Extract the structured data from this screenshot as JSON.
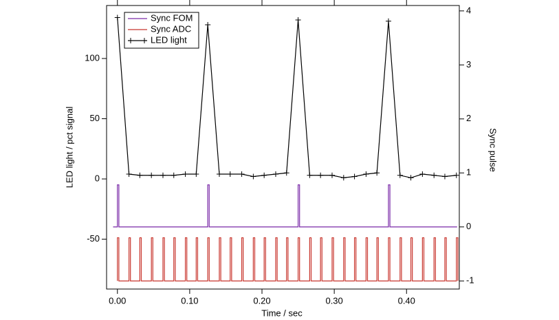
{
  "chart_data": {
    "type": "line",
    "x_label": "Time / sec",
    "y_label": "LED light / pct signal",
    "y2_label": "Sync pulse",
    "xlim": [
      -0.015,
      0.473
    ],
    "ylim": [
      -91.4,
      144
    ],
    "y2lim": [
      -1.15,
      4.1
    ],
    "xticks": [
      {
        "value": 0,
        "label": "0.00"
      },
      {
        "value": 0.1,
        "label": "0.10"
      },
      {
        "value": 0.2,
        "label": "0.20"
      },
      {
        "value": 0.3,
        "label": "0.30"
      },
      {
        "value": 0.4,
        "label": "0.40"
      }
    ],
    "yticks": [
      -50,
      0,
      50,
      100
    ],
    "y2ticks": [
      -1,
      0,
      1,
      2,
      3,
      4
    ],
    "legend": "upper left",
    "series": [
      {
        "name": "Sync FOM",
        "color": "#7a2aa8",
        "axis": "y2",
        "x": [
          -0.006,
          0,
          0,
          0.002,
          0.002,
          0.125,
          0.125,
          0.127,
          0.127,
          0.25,
          0.25,
          0.252,
          0.252,
          0.375,
          0.375,
          0.377,
          0.377,
          0.47
        ],
        "values": [
          0,
          0,
          0.78,
          0.78,
          0,
          0,
          0.78,
          0.78,
          0,
          0,
          0.78,
          0.78,
          0,
          0,
          0.78,
          0.78,
          0,
          0
        ]
      },
      {
        "name": "Sync ADC",
        "color": "#c8342c",
        "axis": "y2",
        "x": [
          0,
          0,
          0.002,
          0.002,
          0.016,
          0.016,
          0.018,
          0.018,
          0.031,
          0.031,
          0.033,
          0.033,
          0.047,
          0.047,
          0.049,
          0.049,
          0.063,
          0.063,
          0.065,
          0.065,
          0.078,
          0.078,
          0.08,
          0.08,
          0.094,
          0.094,
          0.096,
          0.096,
          0.109,
          0.109,
          0.111,
          0.111,
          0.125,
          0.125,
          0.127,
          0.127,
          0.141,
          0.141,
          0.143,
          0.143,
          0.156,
          0.156,
          0.158,
          0.158,
          0.172,
          0.172,
          0.174,
          0.174,
          0.188,
          0.188,
          0.19,
          0.19,
          0.203,
          0.203,
          0.205,
          0.205,
          0.219,
          0.219,
          0.221,
          0.221,
          0.234,
          0.234,
          0.236,
          0.236,
          0.25,
          0.25,
          0.252,
          0.252,
          0.266,
          0.266,
          0.268,
          0.268,
          0.281,
          0.281,
          0.283,
          0.283,
          0.297,
          0.297,
          0.299,
          0.299,
          0.313,
          0.313,
          0.315,
          0.315,
          0.328,
          0.328,
          0.33,
          0.33,
          0.344,
          0.344,
          0.346,
          0.346,
          0.359,
          0.359,
          0.361,
          0.361,
          0.375,
          0.375,
          0.377,
          0.377,
          0.391,
          0.391,
          0.393,
          0.393,
          0.406,
          0.406,
          0.408,
          0.408,
          0.422,
          0.422,
          0.424,
          0.424,
          0.438,
          0.438,
          0.44,
          0.44,
          0.453,
          0.453,
          0.455,
          0.455,
          0.469,
          0.469,
          0.471,
          0.471
        ],
        "values": [
          -1,
          -0.2,
          -0.2,
          -1,
          -1,
          -0.2,
          -0.2,
          -1,
          -1,
          -0.2,
          -0.2,
          -1,
          -1,
          -0.2,
          -0.2,
          -1,
          -1,
          -0.2,
          -0.2,
          -1,
          -1,
          -0.2,
          -0.2,
          -1,
          -1,
          -0.2,
          -0.2,
          -1,
          -1,
          -0.2,
          -0.2,
          -1,
          -1,
          -0.2,
          -0.2,
          -1,
          -1,
          -0.2,
          -0.2,
          -1,
          -1,
          -0.2,
          -0.2,
          -1,
          -1,
          -0.2,
          -0.2,
          -1,
          -1,
          -0.2,
          -0.2,
          -1,
          -1,
          -0.2,
          -0.2,
          -1,
          -1,
          -0.2,
          -0.2,
          -1,
          -1,
          -0.2,
          -0.2,
          -1,
          -1,
          -0.2,
          -0.2,
          -1,
          -1,
          -0.2,
          -0.2,
          -1,
          -1,
          -0.2,
          -0.2,
          -1,
          -1,
          -0.2,
          -0.2,
          -1,
          -1,
          -0.2,
          -0.2,
          -1,
          -1,
          -0.2,
          -0.2,
          -1,
          -1,
          -0.2,
          -0.2,
          -1,
          -1,
          -0.2,
          -0.2,
          -1,
          -1,
          -0.2,
          -0.2,
          -1,
          -1,
          -0.2,
          -0.2,
          -1,
          -1,
          -0.2,
          -0.2,
          -1,
          -1,
          -0.2,
          -0.2,
          -1,
          -1,
          -0.2,
          -0.2,
          -1,
          -1,
          -0.2,
          -0.2,
          -1,
          -1,
          -0.2,
          -0.2,
          -1
        ]
      },
      {
        "name": "LED light",
        "color": "#000000",
        "axis": "y",
        "marker": "+",
        "x": [
          0,
          0.016,
          0.031,
          0.047,
          0.063,
          0.078,
          0.094,
          0.109,
          0.125,
          0.141,
          0.156,
          0.172,
          0.188,
          0.203,
          0.219,
          0.234,
          0.25,
          0.266,
          0.281,
          0.297,
          0.313,
          0.328,
          0.344,
          0.359,
          0.375,
          0.391,
          0.406,
          0.422,
          0.438,
          0.453,
          0.469
        ],
        "values": [
          134,
          4,
          3,
          3,
          3,
          3,
          4,
          4,
          128,
          4,
          4,
          4,
          2,
          3,
          4,
          5,
          132,
          3,
          3,
          3,
          1,
          2,
          4,
          5,
          131,
          3,
          1,
          4,
          3,
          2,
          3
        ]
      }
    ]
  }
}
